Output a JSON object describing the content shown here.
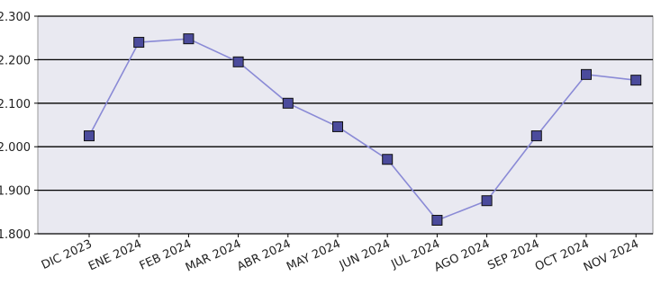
{
  "chart_data": {
    "type": "line",
    "categories": [
      "DIC 2023",
      "ENE 2024",
      "FEB 2024",
      "MAR 2024",
      "ABR 2024",
      "MAY 2024",
      "JUN 2024",
      "JUL 2024",
      "AGO 2024",
      "SEP 2024",
      "OCT 2024",
      "NOV 2024"
    ],
    "series": [
      {
        "color": "#8a8ad6",
        "values": [
          2025,
          2240,
          2248,
          2195,
          2100,
          2046,
          1971,
          1831,
          1876,
          2025,
          2166,
          2153
        ]
      }
    ],
    "ylim": [
      1800,
      2300
    ],
    "yticks": [
      {
        "value": 1800,
        "label": "1.800"
      },
      {
        "value": 1900,
        "label": "1.900"
      },
      {
        "value": 2000,
        "label": "2.000"
      },
      {
        "value": 2100,
        "label": "2.100"
      },
      {
        "value": 2200,
        "label": "2.200"
      },
      {
        "value": 2300,
        "label": "2.300"
      }
    ],
    "grid": true
  }
}
